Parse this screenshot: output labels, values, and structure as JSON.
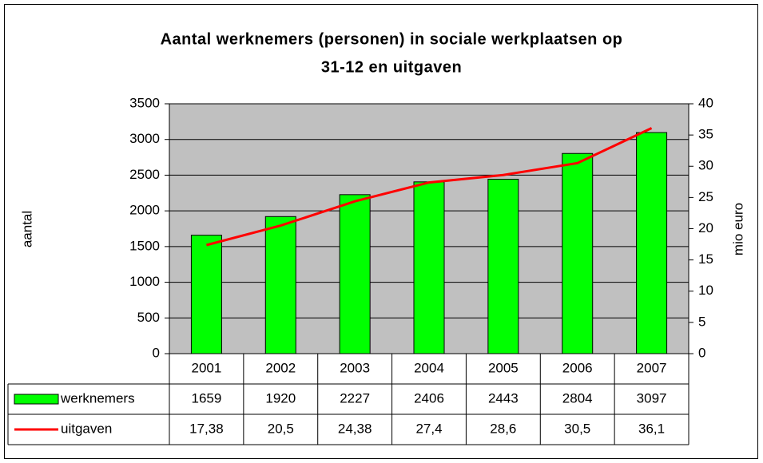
{
  "chart_data": {
    "type": "bar_line",
    "title": [
      "Aantal werknemers (personen) in sociale werkplaatsen op",
      "31-12 en uitgaven"
    ],
    "ylabel": "aantal",
    "y2label": "mio euro",
    "categories": [
      "2001",
      "2002",
      "2003",
      "2004",
      "2005",
      "2006",
      "2007"
    ],
    "series": [
      {
        "name": "werknemers",
        "type": "bar",
        "color": "#00ff00",
        "values": [
          1659,
          1920,
          2227,
          2406,
          2443,
          2804,
          3097
        ]
      },
      {
        "name": "uitgaven",
        "type": "line",
        "axis": "y2",
        "color": "#ff0000",
        "values": [
          17.38,
          20.5,
          24.38,
          27.4,
          28.6,
          30.5,
          36.1
        ],
        "value_labels": [
          "17,38",
          "20,5",
          "24,38",
          "27,4",
          "28,6",
          "30,5",
          "36,1"
        ]
      }
    ],
    "ylim": [
      0,
      3500
    ],
    "yticks": [
      0,
      500,
      1000,
      1500,
      2000,
      2500,
      3000,
      3500
    ],
    "y2lim": [
      0,
      40
    ],
    "y2ticks": [
      0,
      5,
      10,
      15,
      20,
      25,
      30,
      35,
      40
    ],
    "grid": true,
    "data_table": true
  }
}
